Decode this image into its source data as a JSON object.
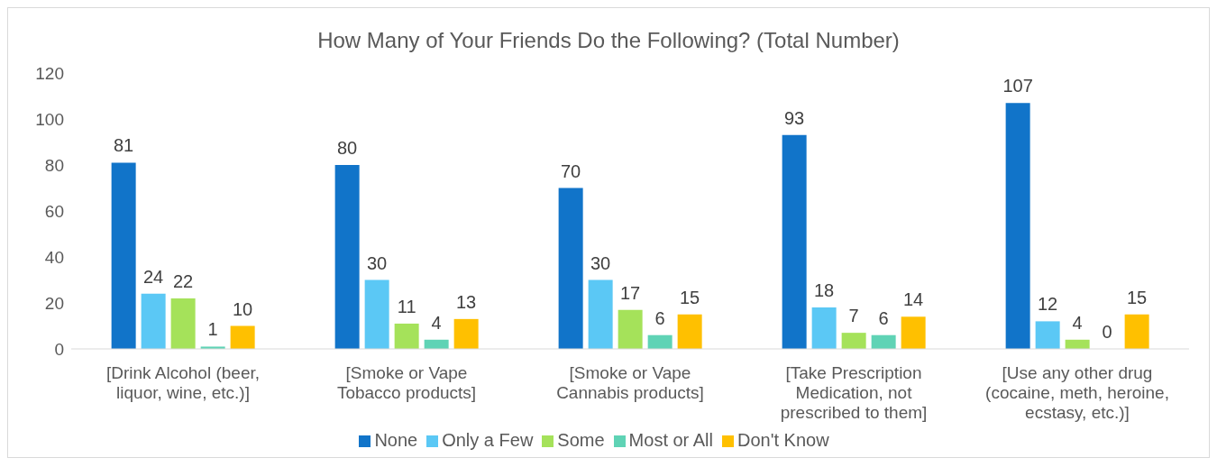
{
  "chart_data": {
    "type": "bar",
    "title": "How Many of Your Friends Do the Following? (Total Number)",
    "categories": [
      "[Drink Alcohol (beer, liquor, wine, etc.)]",
      "[Smoke or Vape Tobacco products]",
      "[Smoke or Vape Cannabis products]",
      "[Take Prescription Medication, not prescribed to them]",
      "[Use any other drug (cocaine, meth, heroine, ecstasy, etc.)]"
    ],
    "series": [
      {
        "name": "None",
        "color": "#1174c9",
        "values": [
          81,
          80,
          70,
          93,
          107
        ]
      },
      {
        "name": "Only a Few",
        "color": "#5bc8f5",
        "values": [
          24,
          30,
          30,
          18,
          12
        ]
      },
      {
        "name": "Some",
        "color": "#a5e25a",
        "values": [
          22,
          11,
          17,
          7,
          4
        ]
      },
      {
        "name": "Most or All",
        "color": "#5fd3b5",
        "values": [
          1,
          4,
          6,
          6,
          0
        ]
      },
      {
        "name": "Don't Know",
        "color": "#ffc000",
        "values": [
          10,
          13,
          15,
          14,
          15
        ]
      }
    ],
    "ylim": [
      0,
      120
    ],
    "yticks": [
      0,
      20,
      40,
      60,
      80,
      100,
      120
    ],
    "grid": false,
    "legend": "bottom",
    "data_labels": true
  }
}
